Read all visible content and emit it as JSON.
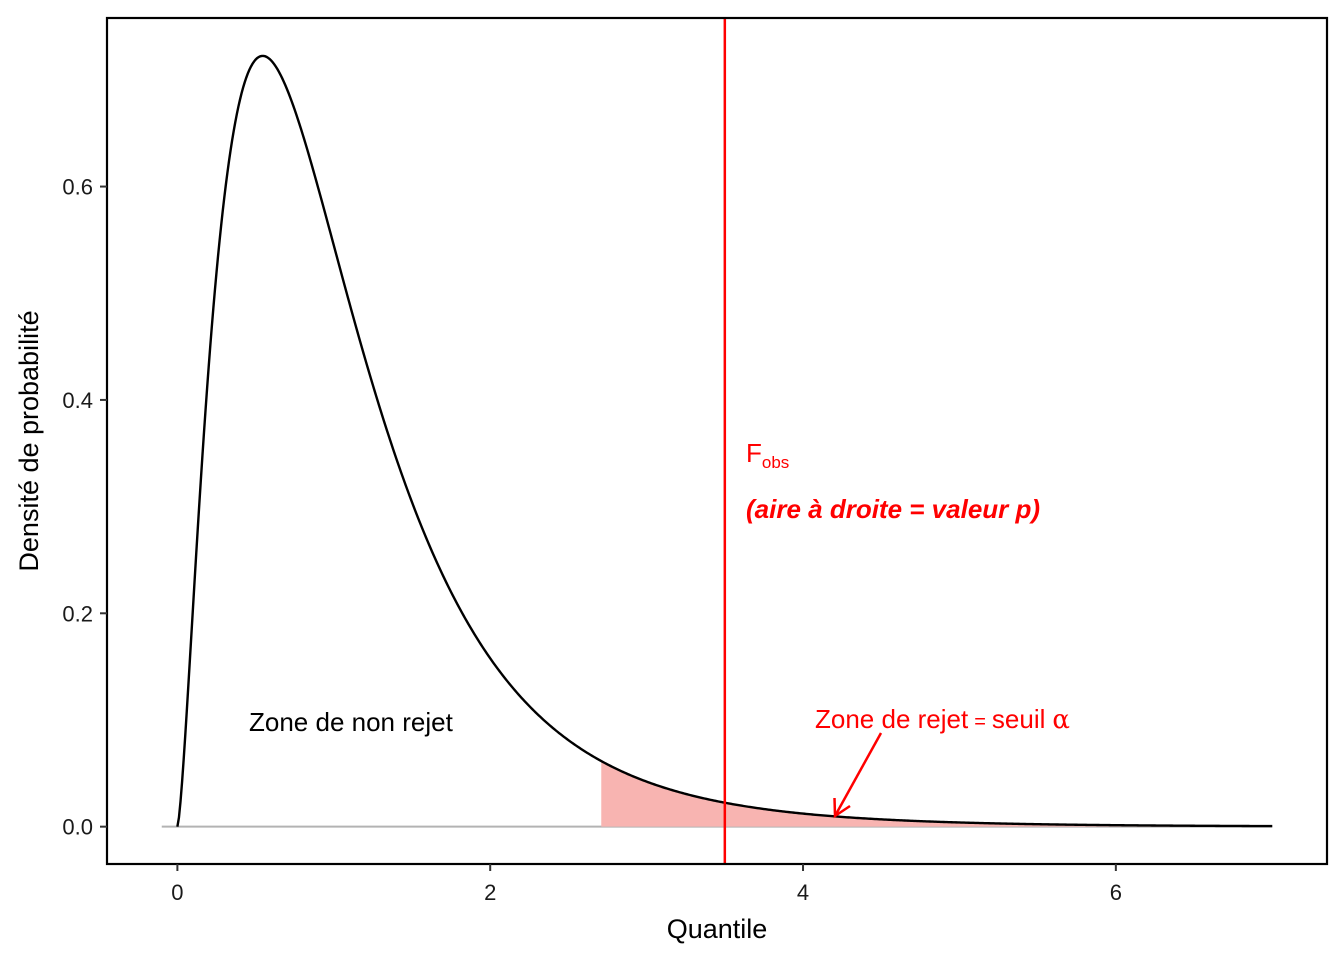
{
  "chart_data": {
    "type": "area",
    "xlabel": "Quantile",
    "ylabel": "Densité de probabilité",
    "xlim": [
      -0.45,
      7.35
    ],
    "ylim": [
      -0.035,
      0.758
    ],
    "x_ticks": [
      0,
      2,
      4,
      6
    ],
    "x_tick_labels": [
      "0",
      "2",
      "4",
      "6"
    ],
    "y_ticks": [
      0.0,
      0.2,
      0.4,
      0.6
    ],
    "y_tick_labels": [
      "0.0",
      "0.2",
      "0.4",
      "0.6"
    ],
    "grid": false,
    "legend": "none",
    "distribution": {
      "name": "F",
      "df1": 5,
      "df2": 20,
      "x_range": [
        0,
        7
      ]
    },
    "curve_color": "#000000",
    "rejection_threshold": 2.71,
    "rejection_fill_color": "#f8b4b1",
    "f_obs": 3.5,
    "f_obs_color": "#ff0000",
    "baseline_color": "#b3b3b3",
    "annotations": {
      "non_reject_label": "Zone de non rejet",
      "f_obs_main": "F",
      "f_obs_sub": "obs",
      "p_value_note": "(aire à droite = valeur p)",
      "reject_label_text": "Zone de rejet",
      "reject_label_eq": "=",
      "reject_label_seuil": "seuil",
      "reject_label_alpha": "α"
    }
  }
}
